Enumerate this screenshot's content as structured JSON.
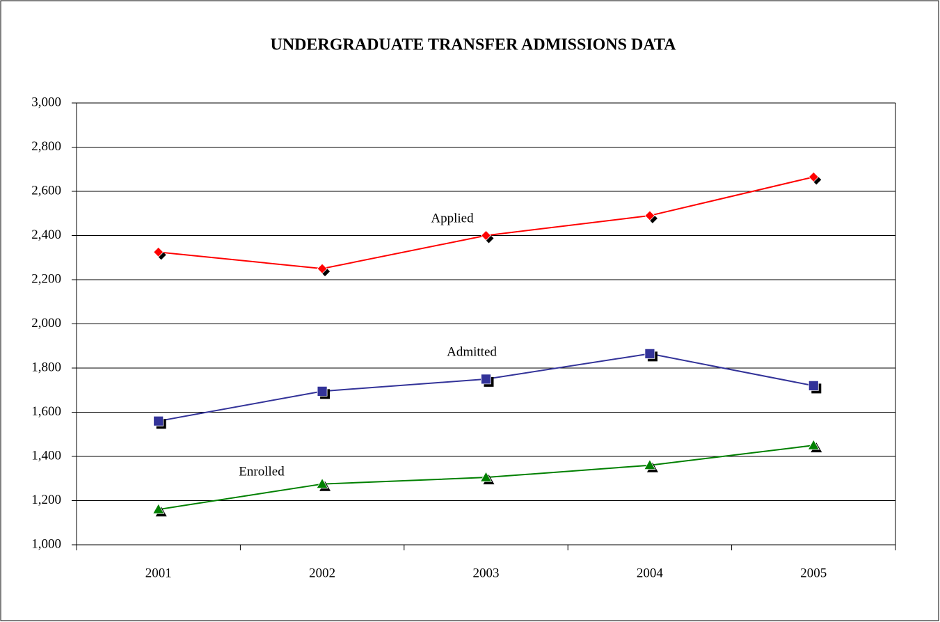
{
  "chart_data": {
    "type": "line",
    "title": "UNDERGRADUATE TRANSFER ADMISSIONS DATA",
    "categories": [
      "2001",
      "2002",
      "2003",
      "2004",
      "2005"
    ],
    "series": [
      {
        "name": "Applied",
        "color": "#ff0000",
        "marker": "diamond",
        "values": [
          2325,
          2250,
          2400,
          2490,
          2665
        ]
      },
      {
        "name": "Admitted",
        "color": "#333399",
        "marker": "square",
        "values": [
          1560,
          1695,
          1750,
          1865,
          1720
        ]
      },
      {
        "name": "Enrolled",
        "color": "#008000",
        "marker": "triangle",
        "values": [
          1160,
          1275,
          1305,
          1360,
          1450
        ]
      }
    ],
    "ylim": [
      1000,
      3000
    ],
    "yticks": [
      {
        "value": 1000,
        "label": "1,000"
      },
      {
        "value": 1200,
        "label": "1,200"
      },
      {
        "value": 1400,
        "label": "1,400"
      },
      {
        "value": 1600,
        "label": "1,600"
      },
      {
        "value": 1800,
        "label": "1,800"
      },
      {
        "value": 2000,
        "label": "2,000"
      },
      {
        "value": 2200,
        "label": "2,200"
      },
      {
        "value": 2400,
        "label": "2,400"
      },
      {
        "value": 2600,
        "label": "2,600"
      },
      {
        "value": 2800,
        "label": "2,800"
      },
      {
        "value": 3000,
        "label": "3,000"
      }
    ],
    "grid": true
  }
}
